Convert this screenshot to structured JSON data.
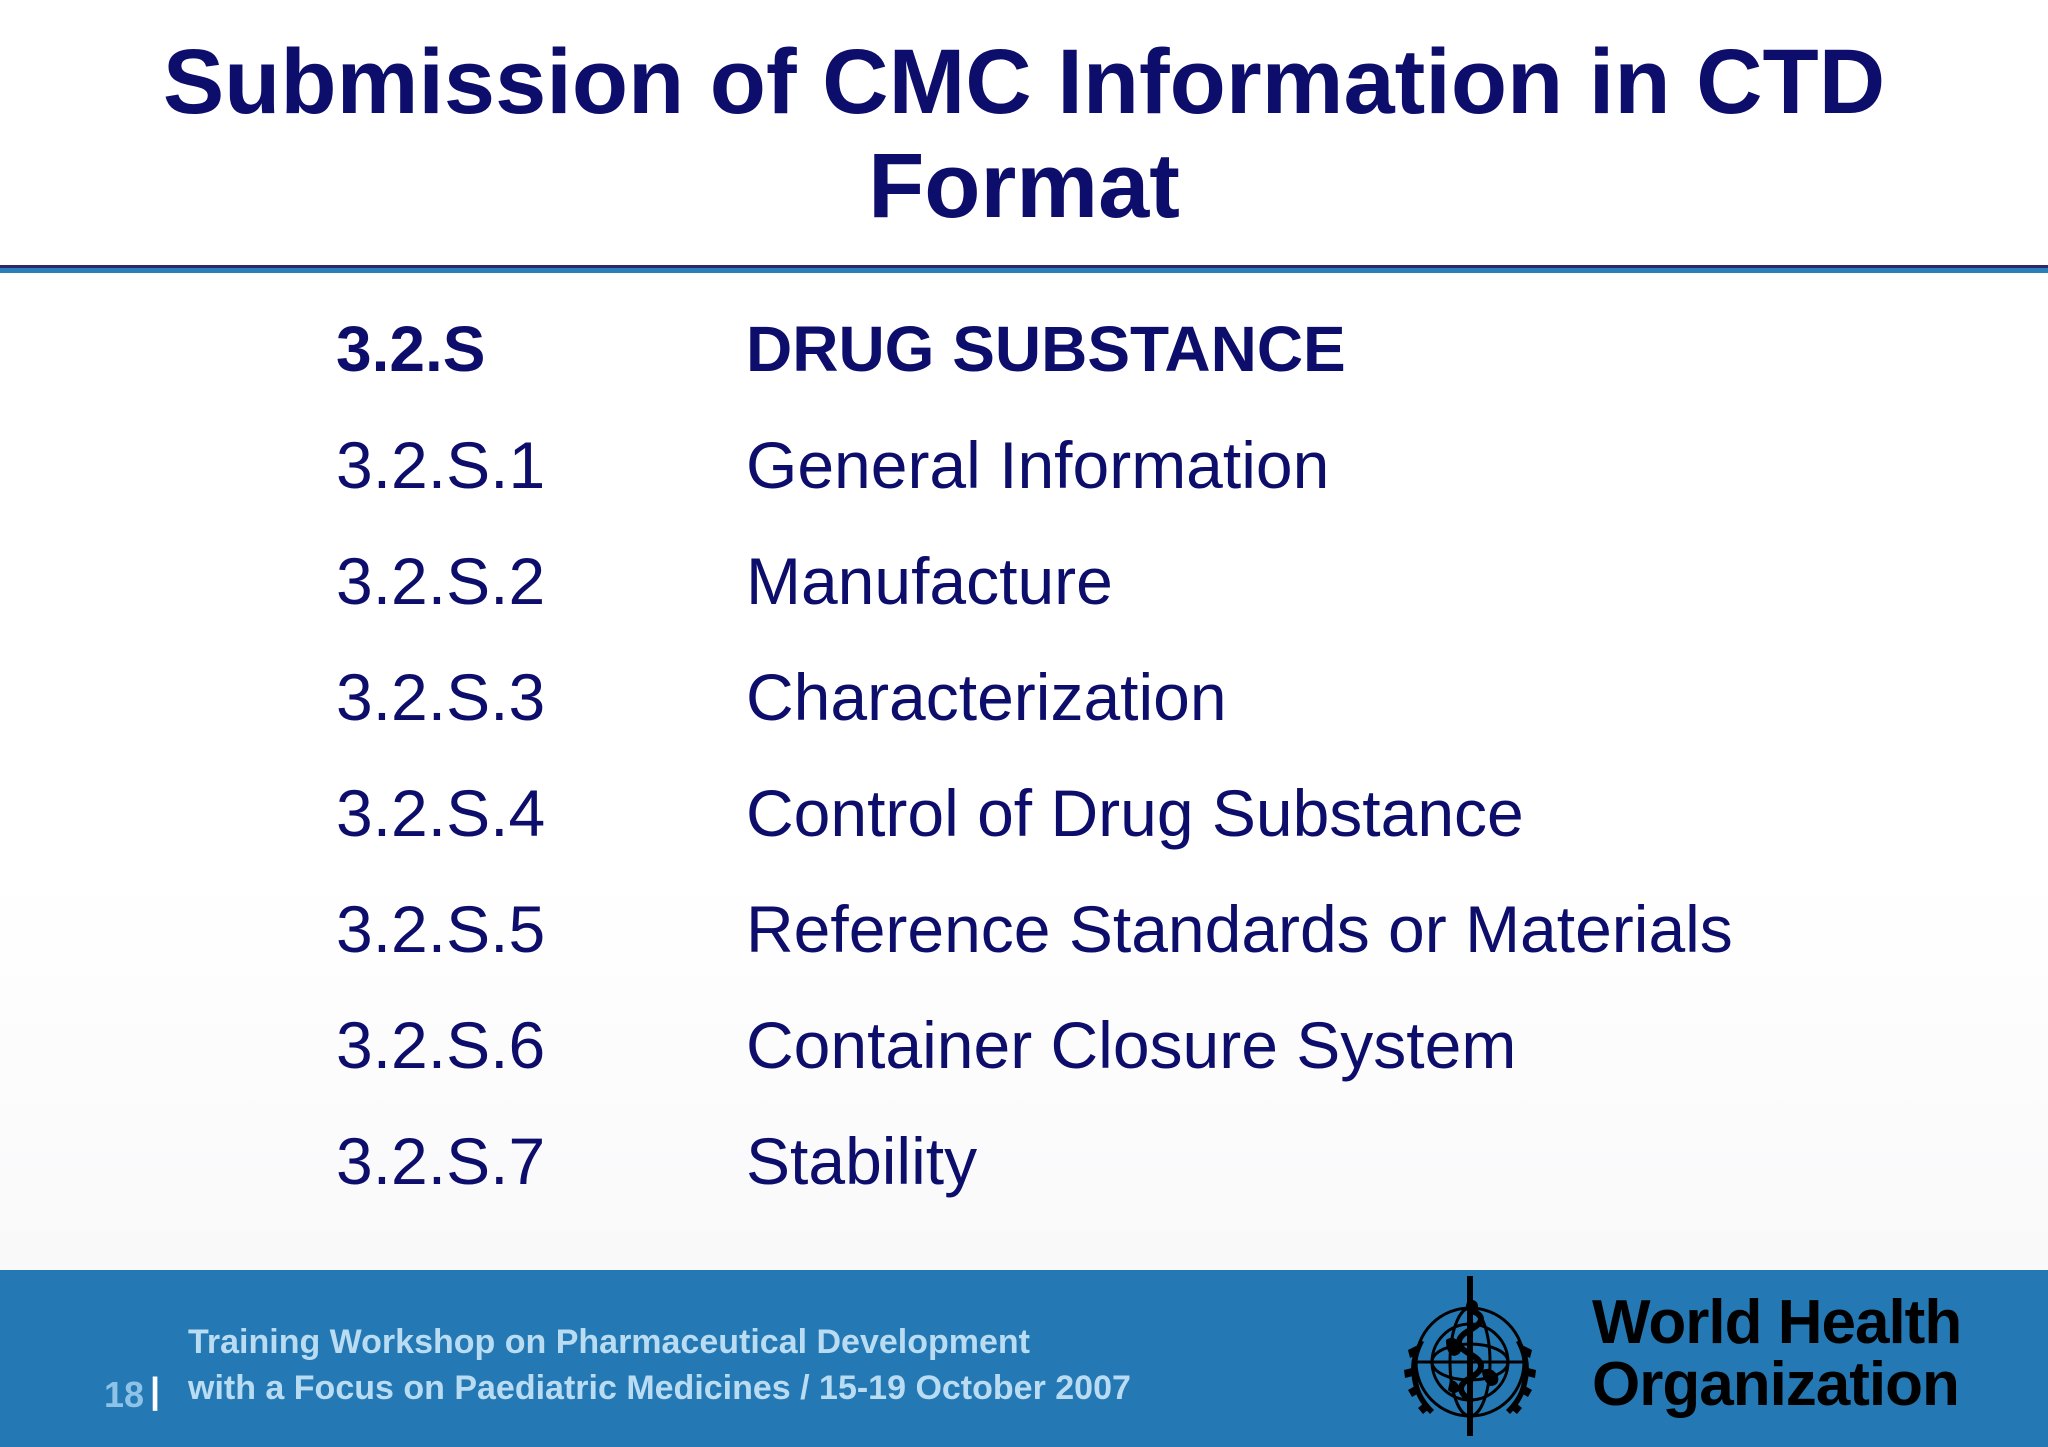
{
  "slide": {
    "title_line1": "Submission of CMC Information in CTD",
    "title_line2": "Format"
  },
  "toc": [
    {
      "number": "3.2.S",
      "label": "DRUG SUBSTANCE"
    },
    {
      "number": "3.2.S.1",
      "label": "General Information"
    },
    {
      "number": "3.2.S.2",
      "label": "Manufacture"
    },
    {
      "number": "3.2.S.3",
      "label": "Characterization"
    },
    {
      "number": "3.2.S.4",
      "label": "Control of Drug Substance"
    },
    {
      "number": "3.2.S.5",
      "label": "Reference Standards or Materials"
    },
    {
      "number": "3.2.S.6",
      "label": "Container Closure System"
    },
    {
      "number": "3.2.S.7",
      "label": "Stability"
    }
  ],
  "footer": {
    "page_number": "18",
    "separator": "|",
    "line1": "Training Workshop on Pharmaceutical Development",
    "line2": "with a Focus on Paediatric Medicines / 15-19 October 2007",
    "org_line1": "World Health",
    "org_line2": "Organization",
    "logo_icon": "who-emblem-icon"
  },
  "colors": {
    "title": "#0d0d6b",
    "footer_bg": "#2479b4",
    "rule_blue": "#2a7fb8"
  }
}
